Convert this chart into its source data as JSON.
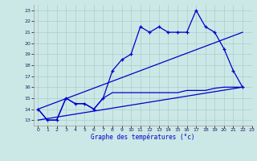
{
  "title": "Graphe des températures (°c)",
  "bg_color": "#cce8e6",
  "grid_color": "#aacccc",
  "line_color": "#0000cc",
  "xlim": [
    -0.5,
    23
  ],
  "ylim": [
    12.5,
    23.5
  ],
  "x_ticks": [
    0,
    1,
    2,
    3,
    4,
    5,
    6,
    7,
    8,
    9,
    10,
    11,
    12,
    13,
    14,
    15,
    16,
    17,
    18,
    19,
    20,
    21,
    22,
    23
  ],
  "y_ticks": [
    13,
    14,
    15,
    16,
    17,
    18,
    19,
    20,
    21,
    22,
    23
  ],
  "temp_main": [
    14,
    13,
    13,
    15,
    14.5,
    14.5,
    14,
    15,
    17.5,
    18.5,
    19.0,
    21.5,
    21.0,
    21.5,
    21.0,
    21.0,
    21.0,
    23.0,
    21.5,
    21.0,
    19.5,
    17.5,
    16.0
  ],
  "temp_flat": [
    14,
    13,
    13,
    15,
    14.5,
    14.5,
    14,
    15,
    15.5,
    15.5,
    15.5,
    15.5,
    15.5,
    15.5,
    15.5,
    15.5,
    15.7,
    15.7,
    15.7,
    15.9,
    16.0,
    16.0,
    16.0
  ],
  "trend1_x": [
    0,
    22
  ],
  "trend1_y": [
    14.0,
    21.0
  ],
  "trend2_x": [
    0,
    22
  ],
  "trend2_y": [
    13.0,
    16.0
  ]
}
